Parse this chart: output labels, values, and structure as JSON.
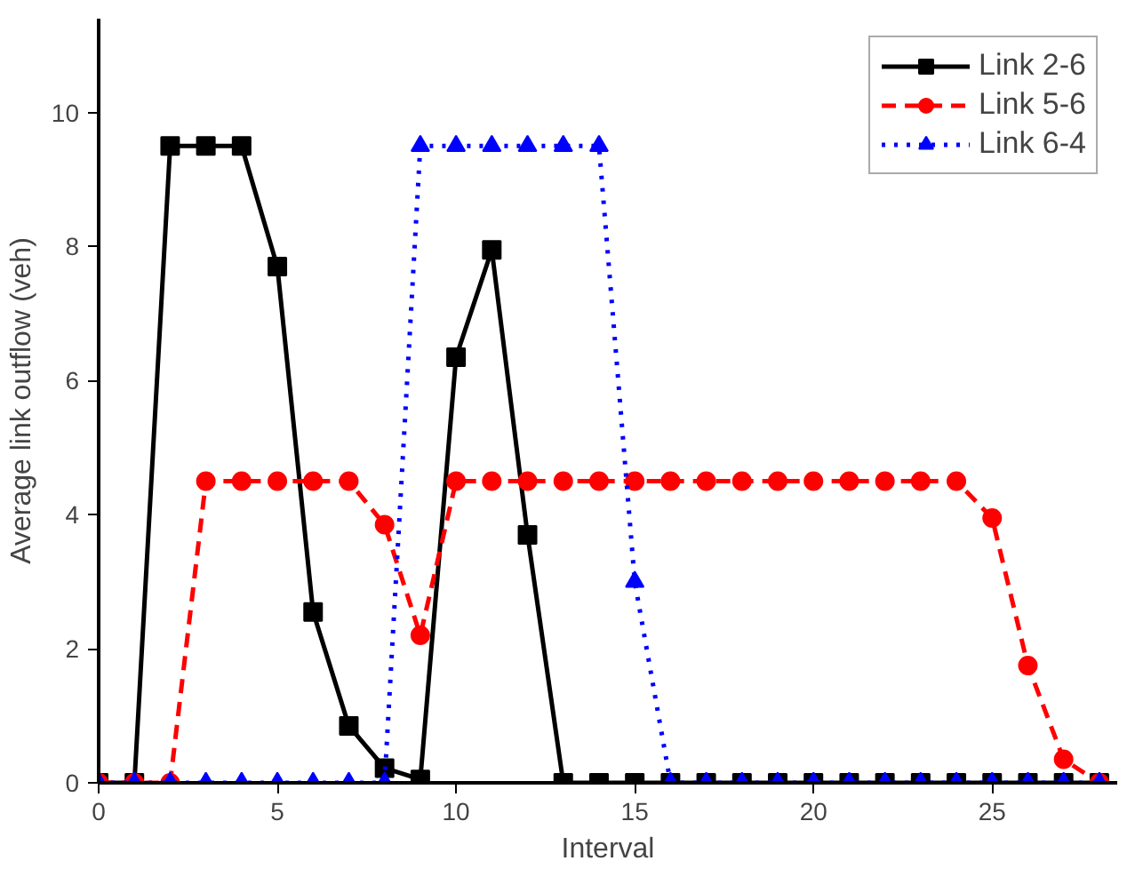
{
  "chart_data": {
    "type": "line",
    "xlabel": "Interval",
    "ylabel": "Average link outflow (veh)",
    "x": [
      0,
      1,
      2,
      3,
      4,
      5,
      6,
      7,
      8,
      9,
      10,
      11,
      12,
      13,
      14,
      15,
      16,
      17,
      18,
      19,
      20,
      21,
      22,
      23,
      24,
      25,
      26,
      27,
      28
    ],
    "xlim": [
      0,
      28.5
    ],
    "xticks": [
      0,
      5,
      10,
      15,
      20,
      25
    ],
    "ylim": [
      0,
      11.4
    ],
    "yticks": [
      0,
      2,
      4,
      6,
      8,
      10
    ],
    "grid": false,
    "legend": "top right",
    "series": [
      {
        "name": "Link 2-6",
        "color": "#000000",
        "marker": "square",
        "line_style": "solid",
        "values": [
          0,
          0,
          9.5,
          9.5,
          9.5,
          7.7,
          2.55,
          0.85,
          0.22,
          0.05,
          6.35,
          7.95,
          3.7,
          0,
          0,
          0,
          0,
          0,
          0,
          0,
          0,
          0,
          0,
          0,
          0,
          0,
          0,
          0,
          0
        ]
      },
      {
        "name": "Link 5-6",
        "color": "#ff0000",
        "marker": "circle",
        "line_style": "dashed",
        "values": [
          0,
          0,
          0,
          4.5,
          4.5,
          4.5,
          4.5,
          4.5,
          3.85,
          2.2,
          4.5,
          4.5,
          4.5,
          4.5,
          4.5,
          4.5,
          4.5,
          4.5,
          4.5,
          4.5,
          4.5,
          4.5,
          4.5,
          4.5,
          4.5,
          3.95,
          1.75,
          0.35,
          0
        ]
      },
      {
        "name": "Link 6-4",
        "color": "#0000ff",
        "marker": "triangle",
        "line_style": "dotted",
        "values": [
          0,
          0,
          0,
          0,
          0,
          0,
          0,
          0,
          0,
          9.5,
          9.5,
          9.5,
          9.5,
          9.5,
          9.5,
          3.0,
          0,
          0,
          0,
          0,
          0,
          0,
          0,
          0,
          0,
          0,
          0,
          0,
          0
        ]
      }
    ]
  }
}
